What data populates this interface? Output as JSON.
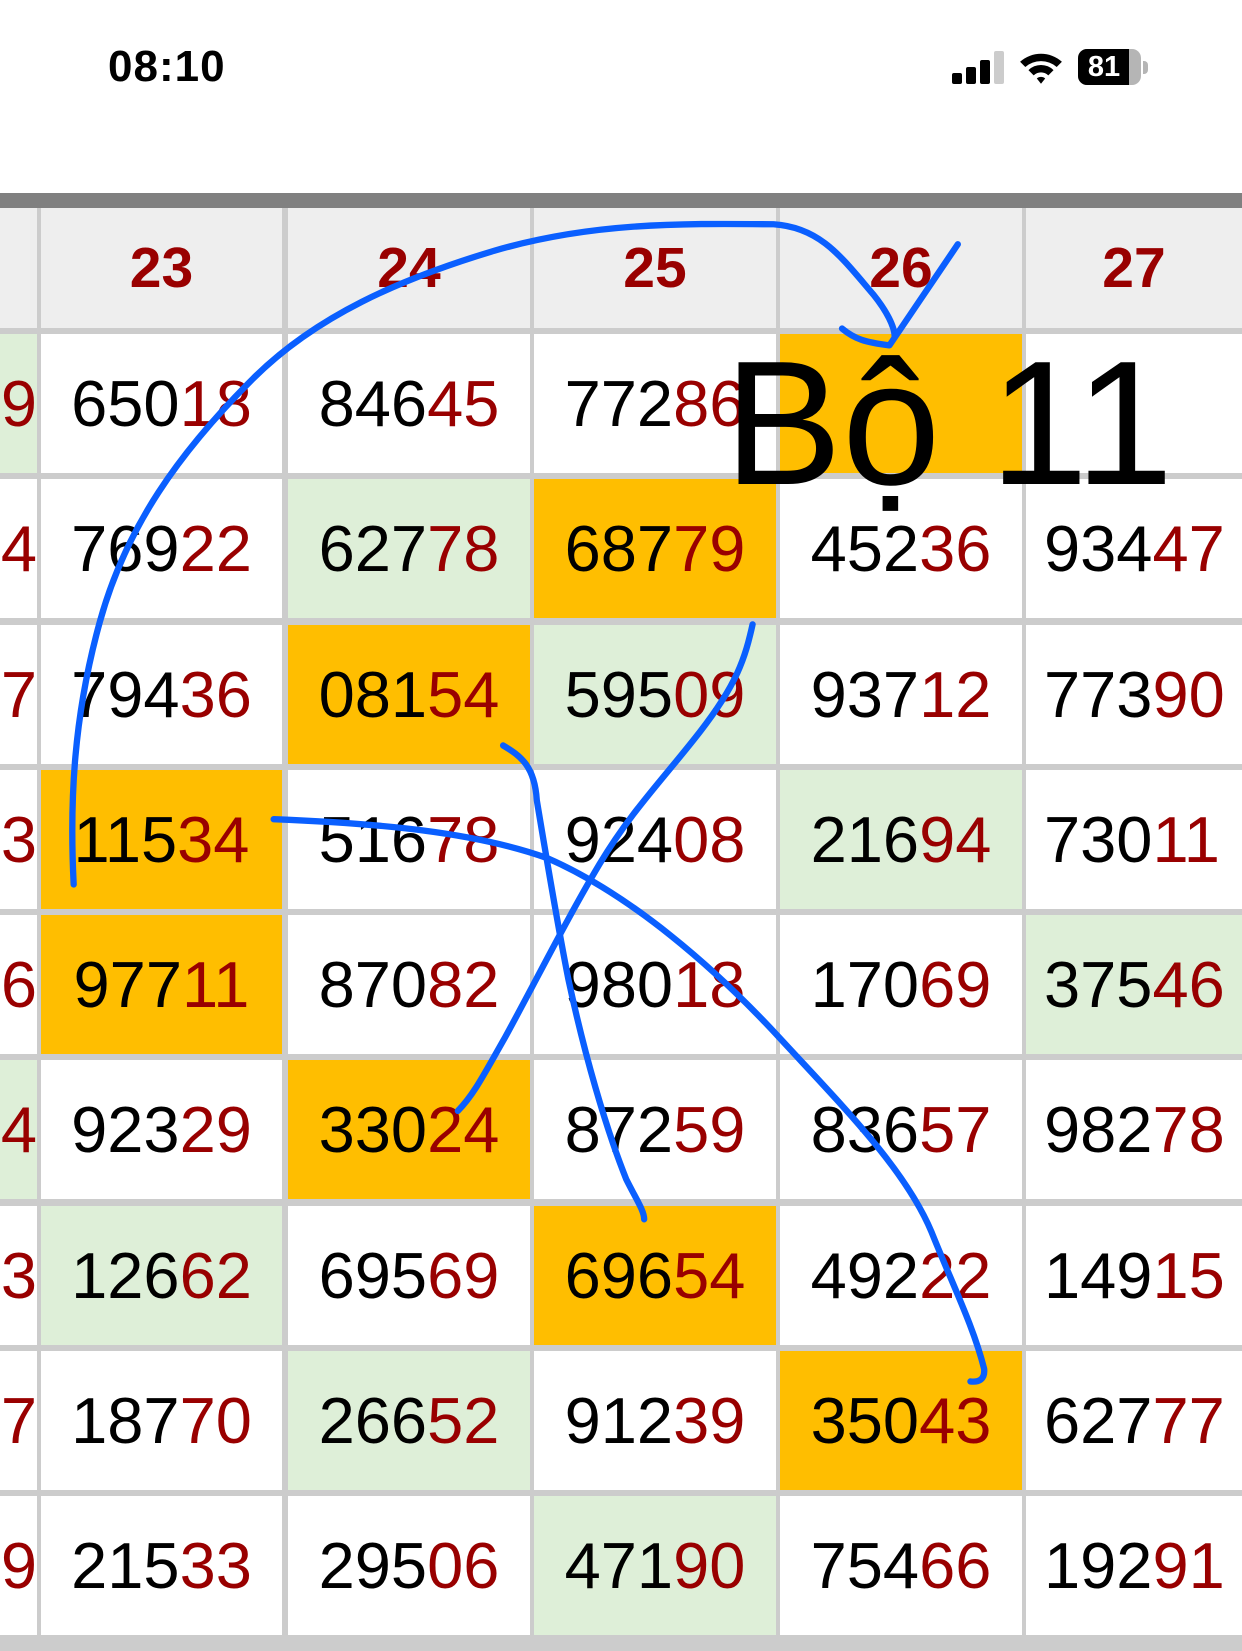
{
  "status_bar": {
    "time": "08:10",
    "battery": "81",
    "battery_level": 0.81,
    "icons": [
      "signal-icon",
      "wifi-icon",
      "battery-icon"
    ]
  },
  "colors": {
    "header_text": "#990000",
    "tail_digits": "#990000",
    "highlight": "#ffbe00",
    "green": "#deefd8",
    "ink": "#0a5fff"
  },
  "overlay_text": "Bộ 11",
  "left_partial": [
    "9",
    "4",
    "7",
    "3",
    "6",
    "4",
    "3",
    "7",
    "9"
  ],
  "left_partial_bg": [
    "green",
    "white",
    "white",
    "white",
    "white",
    "green",
    "white",
    "white",
    "white"
  ],
  "columns": [
    {
      "header": "23",
      "cells": [
        {
          "num": "65018",
          "bg": "white"
        },
        {
          "num": "76922",
          "bg": "white"
        },
        {
          "num": "79436",
          "bg": "white"
        },
        {
          "num": "11534",
          "bg": "orange"
        },
        {
          "num": "97711",
          "bg": "orange"
        },
        {
          "num": "92329",
          "bg": "white"
        },
        {
          "num": "12662",
          "bg": "green"
        },
        {
          "num": "18770",
          "bg": "white"
        },
        {
          "num": "21533",
          "bg": "white"
        }
      ]
    },
    {
      "header": "24",
      "cells": [
        {
          "num": "84645",
          "bg": "white"
        },
        {
          "num": "62778",
          "bg": "green"
        },
        {
          "num": "08154",
          "bg": "orange"
        },
        {
          "num": "51678",
          "bg": "white"
        },
        {
          "num": "87082",
          "bg": "white"
        },
        {
          "num": "33024",
          "bg": "orange"
        },
        {
          "num": "69569",
          "bg": "white"
        },
        {
          "num": "26652",
          "bg": "green"
        },
        {
          "num": "29506",
          "bg": "white"
        }
      ]
    },
    {
      "header": "25",
      "cells": [
        {
          "num": "77286",
          "bg": "white"
        },
        {
          "num": "68779",
          "bg": "orange"
        },
        {
          "num": "59509",
          "bg": "green"
        },
        {
          "num": "92408",
          "bg": "white"
        },
        {
          "num": "98018",
          "bg": "white"
        },
        {
          "num": "87259",
          "bg": "white"
        },
        {
          "num": "69654",
          "bg": "orange"
        },
        {
          "num": "91239",
          "bg": "white"
        },
        {
          "num": "47190",
          "bg": "green"
        }
      ]
    },
    {
      "header": "26",
      "cells": [
        {
          "num": "",
          "bg": "orange"
        },
        {
          "num": "45236",
          "bg": "white"
        },
        {
          "num": "93712",
          "bg": "white"
        },
        {
          "num": "21694",
          "bg": "green"
        },
        {
          "num": "17069",
          "bg": "white"
        },
        {
          "num": "83657",
          "bg": "white"
        },
        {
          "num": "49222",
          "bg": "white"
        },
        {
          "num": "35043",
          "bg": "orange"
        },
        {
          "num": "75466",
          "bg": "white"
        }
      ]
    },
    {
      "header": "27",
      "cells": [
        {
          "num": "",
          "bg": "white"
        },
        {
          "num": "93447",
          "bg": "white"
        },
        {
          "num": "77390",
          "bg": "white"
        },
        {
          "num": "73011",
          "bg": "white"
        },
        {
          "num": "37546",
          "bg": "green"
        },
        {
          "num": "98278",
          "bg": "white"
        },
        {
          "num": "14915",
          "bg": "white"
        },
        {
          "num": "62777",
          "bg": "white"
        },
        {
          "num": "19291",
          "bg": "white"
        }
      ]
    }
  ]
}
